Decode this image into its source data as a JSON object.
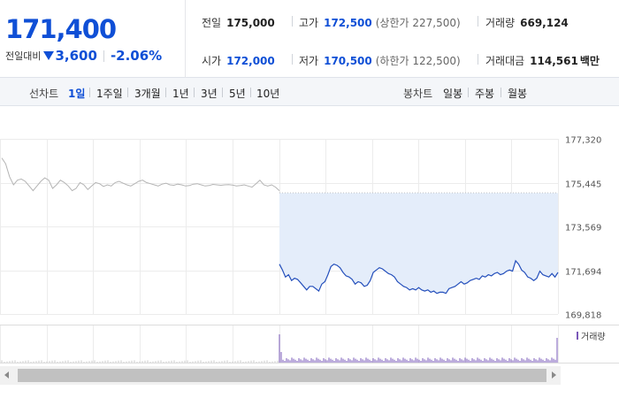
{
  "summary": {
    "price": "171,400",
    "change_label": "전일대비",
    "change_icon": "down-triangle-icon",
    "change_amount": "3,600",
    "change_rate": "-2.06%",
    "prev_close_label": "전일",
    "prev_close": "175,000",
    "high_label": "고가",
    "high": "172,500",
    "upper_limit": "(상한가 227,500)",
    "volume_label": "거래량",
    "volume": "669,124",
    "open_label": "시가",
    "open": "172,000",
    "low_label": "저가",
    "low": "170,500",
    "lower_limit": "(하한가 122,500)",
    "trade_value_label": "거래대금",
    "trade_value": "114,561",
    "trade_value_unit": "백만",
    "colors": {
      "down": "#0f4fd6",
      "text": "#222222"
    }
  },
  "period_bar": {
    "line_chart_label": "선차트",
    "line_periods": [
      "1일",
      "1주일",
      "3개월",
      "1년",
      "3년",
      "5년",
      "10년"
    ],
    "active_period": "1일",
    "candle_chart_label": "봉차트",
    "candle_periods": [
      "일봉",
      "주봉",
      "월봉"
    ]
  },
  "chart_data": {
    "type": "line",
    "y_ticks": [
      "177,320",
      "175,445",
      "173,569",
      "171,694",
      "169,818"
    ],
    "ylim": [
      169818,
      177320
    ],
    "previous_close": 175000,
    "grid": true,
    "legend": "top-right",
    "volume_legend": "거래량",
    "colors": {
      "prev_day_line": "#b4b4b4",
      "today_line": "#2550bc",
      "area_fill": "#e4edfa",
      "volume": "#7a58b8"
    },
    "prev_day_series": [
      176500,
      176250,
      175700,
      175350,
      175550,
      175600,
      175500,
      175300,
      175100,
      175300,
      175500,
      175650,
      175550,
      175200,
      175350,
      175550,
      175450,
      175300,
      175100,
      175200,
      175450,
      175350,
      175150,
      175300,
      175450,
      175400,
      175280,
      175350,
      175300,
      175450,
      175500,
      175420,
      175350,
      175300,
      175400,
      175500,
      175550,
      175450,
      175400,
      175350,
      175300,
      175380,
      175420,
      175350,
      175330,
      175380,
      175350,
      175300,
      175320,
      175380,
      175400,
      175350,
      175300,
      175320,
      175370,
      175350,
      175330,
      175350,
      175360,
      175340,
      175300,
      175320,
      175350,
      175300,
      175250,
      175400,
      175550,
      175350,
      175300,
      175350,
      175250,
      175100
    ],
    "today_series": [
      171950,
      171700,
      171400,
      171500,
      171250,
      171350,
      171300,
      171150,
      171000,
      170850,
      171000,
      171000,
      170900,
      170800,
      171100,
      171200,
      171500,
      171850,
      171950,
      171900,
      171800,
      171600,
      171450,
      171400,
      171300,
      171100,
      171200,
      171150,
      171000,
      171050,
      171250,
      171600,
      171700,
      171800,
      171750,
      171650,
      171550,
      171500,
      171400,
      171200,
      171100,
      171000,
      170950,
      170850,
      170900,
      170850,
      170950,
      170850,
      170800,
      170850,
      170750,
      170800,
      170700,
      170750,
      170750,
      170700,
      170900,
      170950,
      171000,
      171100,
      171200,
      171100,
      171150,
      171250,
      171300,
      171350,
      171300,
      171450,
      171400,
      171500,
      171450,
      171550,
      171600,
      171500,
      171550,
      171650,
      171700,
      171650,
      172100,
      171950,
      171700,
      171600,
      171400,
      171350,
      171250,
      171350,
      171650,
      171500,
      171450,
      171400,
      171550,
      171400,
      171600
    ]
  },
  "scrollbar": {
    "left_arrow_icon": "scroll-left-arrow-icon",
    "right_arrow_icon": "scroll-right-arrow-icon"
  }
}
